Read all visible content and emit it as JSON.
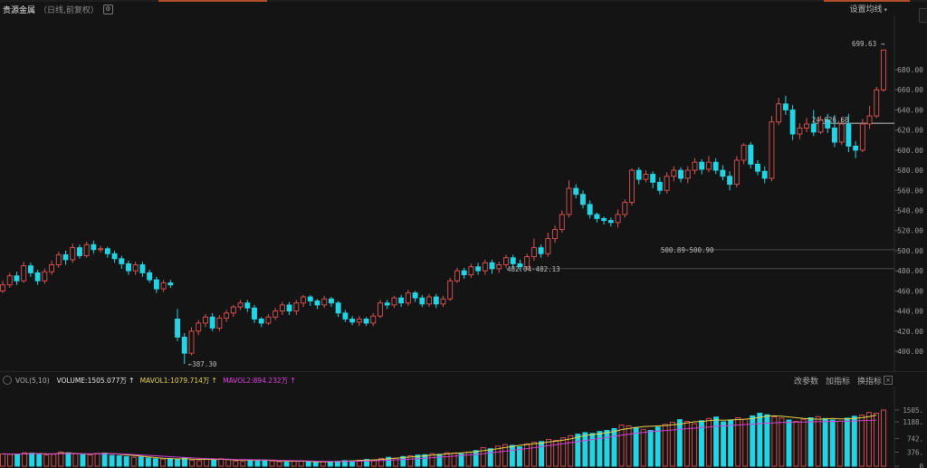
{
  "header": {
    "title": "贵源金属",
    "subtitle": "（日线,前复权）",
    "ma_settings": "设置均线"
  },
  "volume_header": {
    "indicator": "VOL(5,10)",
    "volume_label": "VOLUME:",
    "volume_value": "1505.077万",
    "mavol1_label": "MAVOL1:",
    "mavol1_value": "1079.714万",
    "mavol2_label": "MAVOL2:",
    "mavol2_value": "894.232万",
    "tools": [
      "改参数",
      "加指标",
      "换指标"
    ]
  },
  "colors": {
    "up": "#e05454",
    "down": "#22d4e4",
    "ma_yellow": "#e8d44a",
    "ma_magenta": "#d540d5",
    "axis_text": "#9a9a9a"
  },
  "chart_data": [
    {
      "type": "candlestick",
      "title": "贵源金属",
      "ylim": [
        385,
        710
      ],
      "yticks": [
        400,
        420,
        440,
        460,
        480,
        500,
        520,
        540,
        560,
        580,
        600,
        620,
        640,
        660,
        680
      ],
      "annotations": [
        {
          "text": "699.63",
          "value": 699.63
        },
        {
          "text": "387.30",
          "value": 387.3
        },
        {
          "text": "500.89-500.90",
          "value": 500.9
        },
        {
          "text": "482.04-482.13",
          "value": 482.1
        },
        {
          "text": "24-626.68",
          "value": 626.68
        }
      ],
      "candles": [
        [
          460,
          466,
          458,
          470
        ],
        [
          466,
          475,
          463,
          478
        ],
        [
          475,
          470,
          466,
          479
        ],
        [
          470,
          485,
          468,
          489
        ],
        [
          485,
          478,
          474,
          488
        ],
        [
          478,
          470,
          466,
          481
        ],
        [
          470,
          479,
          467,
          482
        ],
        [
          479,
          486,
          476,
          490
        ],
        [
          486,
          496,
          483,
          499
        ],
        [
          496,
          491,
          486,
          500
        ],
        [
          491,
          503,
          488,
          507
        ],
        [
          503,
          495,
          492,
          506
        ],
        [
          495,
          506,
          493,
          509
        ],
        [
          506,
          501,
          497,
          510
        ],
        [
          501,
          502,
          498,
          505
        ],
        [
          502,
          497,
          493,
          504
        ],
        [
          497,
          492,
          488,
          500
        ],
        [
          492,
          487,
          482,
          495
        ],
        [
          487,
          480,
          476,
          490
        ],
        [
          480,
          486,
          476,
          489
        ],
        [
          486,
          478,
          474,
          489
        ],
        [
          478,
          471,
          468,
          481
        ],
        [
          471,
          462,
          458,
          474
        ],
        [
          462,
          468,
          459,
          471
        ],
        [
          468,
          466,
          463,
          471
        ],
        [
          432,
          414,
          410,
          442
        ],
        [
          414,
          398,
          387.3,
          418
        ],
        [
          398,
          420,
          396,
          424
        ],
        [
          420,
          428,
          416,
          431
        ],
        [
          428,
          434,
          424,
          437
        ],
        [
          434,
          423,
          420,
          438
        ],
        [
          423,
          433,
          420,
          436
        ],
        [
          433,
          438,
          429,
          441
        ],
        [
          438,
          444,
          434,
          446
        ],
        [
          444,
          448,
          441,
          451
        ],
        [
          448,
          443,
          439,
          451
        ],
        [
          443,
          432,
          428,
          446
        ],
        [
          432,
          428,
          424,
          434
        ],
        [
          428,
          434,
          426,
          437
        ],
        [
          434,
          440,
          431,
          443
        ],
        [
          440,
          446,
          436,
          449
        ],
        [
          446,
          440,
          436,
          449
        ],
        [
          440,
          448,
          436,
          451
        ],
        [
          448,
          454,
          444,
          456
        ],
        [
          454,
          450,
          445,
          456
        ],
        [
          450,
          446,
          442,
          452
        ],
        [
          446,
          452,
          443,
          455
        ],
        [
          452,
          448,
          444,
          454
        ],
        [
          448,
          438,
          434,
          450
        ],
        [
          438,
          432,
          429,
          441
        ],
        [
          432,
          429,
          426,
          435
        ],
        [
          429,
          432,
          425,
          435
        ],
        [
          432,
          428,
          425,
          434
        ],
        [
          428,
          435,
          425,
          438
        ],
        [
          435,
          448,
          433,
          451
        ],
        [
          448,
          446,
          442,
          451
        ],
        [
          446,
          453,
          443,
          455
        ],
        [
          453,
          448,
          444,
          456
        ],
        [
          448,
          458,
          445,
          461
        ],
        [
          458,
          453,
          449,
          460
        ],
        [
          453,
          447,
          444,
          456
        ],
        [
          447,
          454,
          444,
          457
        ],
        [
          454,
          447,
          443,
          457
        ],
        [
          447,
          452,
          444,
          455
        ],
        [
          452,
          470,
          450,
          473
        ],
        [
          470,
          480,
          468,
          483
        ],
        [
          480,
          476,
          472,
          483
        ],
        [
          476,
          484,
          473,
          487
        ],
        [
          484,
          480,
          476,
          488
        ],
        [
          480,
          488,
          476,
          491
        ],
        [
          488,
          482,
          477,
          491
        ],
        [
          482,
          486,
          478,
          489
        ],
        [
          486,
          493,
          483,
          496
        ],
        [
          493,
          487,
          483,
          496
        ],
        [
          487,
          484,
          480,
          491
        ],
        [
          484,
          494,
          481,
          497
        ],
        [
          494,
          503,
          490,
          512
        ],
        [
          503,
          497,
          493,
          506
        ],
        [
          497,
          512,
          494,
          518
        ],
        [
          512,
          521,
          508,
          525
        ],
        [
          521,
          536,
          518,
          540
        ],
        [
          536,
          562,
          533,
          570
        ],
        [
          562,
          556,
          552,
          566
        ],
        [
          556,
          546,
          542,
          560
        ],
        [
          546,
          536,
          532,
          550
        ],
        [
          536,
          532,
          528,
          538
        ],
        [
          532,
          530,
          526,
          534
        ],
        [
          530,
          528,
          524,
          533
        ],
        [
          528,
          536,
          523,
          541
        ],
        [
          536,
          548,
          533,
          551
        ],
        [
          548,
          580,
          545,
          582
        ],
        [
          580,
          571,
          566,
          583
        ],
        [
          571,
          576,
          568,
          580
        ],
        [
          576,
          568,
          562,
          579
        ],
        [
          568,
          560,
          556,
          573
        ],
        [
          560,
          574,
          557,
          578
        ],
        [
          574,
          580,
          569,
          584
        ],
        [
          580,
          572,
          568,
          583
        ],
        [
          572,
          580,
          567,
          584
        ],
        [
          580,
          588,
          576,
          592
        ],
        [
          588,
          581,
          576,
          591
        ],
        [
          581,
          588,
          578,
          594
        ],
        [
          588,
          580,
          576,
          592
        ],
        [
          580,
          574,
          570,
          585
        ],
        [
          574,
          566,
          560,
          579
        ],
        [
          566,
          590,
          563,
          594
        ],
        [
          590,
          605,
          586,
          607
        ],
        [
          605,
          586,
          582,
          608
        ],
        [
          586,
          579,
          575,
          590
        ],
        [
          579,
          572,
          567,
          584
        ],
        [
          572,
          628,
          569,
          634
        ],
        [
          628,
          646,
          625,
          652
        ],
        [
          646,
          640,
          635,
          654
        ],
        [
          640,
          616,
          610,
          645
        ],
        [
          616,
          622,
          611,
          627
        ],
        [
          622,
          626,
          618,
          632
        ],
        [
          626,
          618,
          614,
          640
        ],
        [
          618,
          630,
          616,
          634
        ],
        [
          630,
          622,
          617,
          636
        ],
        [
          622,
          608,
          603,
          635
        ],
        [
          608,
          626,
          605,
          632
        ],
        [
          626,
          604,
          598,
          636
        ],
        [
          604,
          600,
          592,
          609
        ],
        [
          600,
          626,
          598,
          631
        ],
        [
          626,
          634,
          621,
          644
        ],
        [
          634,
          660,
          632,
          663
        ],
        [
          660,
          699.63,
          658,
          699.63
        ]
      ],
      "volume": {
        "yticks": [
          "1505.",
          "1188.",
          "742.",
          "376.",
          "0"
        ],
        "bars": [
          330,
          320,
          315,
          360,
          350,
          340,
          300,
          320,
          380,
          360,
          330,
          310,
          300,
          340,
          350,
          290,
          280,
          260,
          240,
          250,
          220,
          200,
          190,
          210,
          180,
          230,
          160,
          150,
          180,
          170,
          200,
          180,
          140,
          130,
          150,
          170,
          160,
          140,
          120,
          110,
          130,
          140,
          120,
          100,
          120,
          110,
          130,
          150,
          140,
          160,
          180,
          170,
          210,
          240,
          220,
          260,
          280,
          300,
          310,
          340,
          320,
          360,
          350,
          330,
          380,
          420,
          500,
          470,
          540,
          580,
          560,
          520,
          600,
          640,
          660,
          720,
          690,
          760,
          820,
          860,
          900,
          880,
          930,
          960,
          1010,
          1100,
          1080,
          1040,
          990,
          960,
          1050,
          1120,
          1180,
          1250,
          1200,
          1140,
          1220,
          1280,
          1320,
          1190,
          1240,
          1300,
          1260,
          1350,
          1420,
          1380,
          1320,
          1290,
          1240,
          1200,
          1260,
          1300,
          1330,
          1280,
          1240,
          1210,
          1290,
          1340,
          1370,
          1440,
          1420,
          1505.077
        ],
        "mavol1": [
          330,
          325,
          322,
          331,
          335,
          337,
          330,
          328,
          344,
          350,
          342,
          330,
          325,
          336,
          346,
          336,
          322,
          304,
          288,
          270,
          250,
          230,
          214,
          200,
          194,
          198,
          190,
          184,
          186,
          178,
          184,
          178,
          166,
          162,
          160,
          160,
          164,
          154,
          144,
          136,
          134,
          136,
          130,
          120,
          118,
          118,
          124,
          134,
          142,
          150,
          162,
          168,
          180,
          200,
          214,
          232,
          246,
          260,
          278,
          298,
          312,
          328,
          346,
          356,
          372,
          388,
          416,
          440,
          468,
          500,
          530,
          560,
          580,
          600,
          620,
          650,
          670,
          700,
          730,
          780,
          820,
          850,
          870,
          900,
          930,
          980,
          1010,
          1040,
          1060,
          1070,
          1080,
          1090,
          1110,
          1130,
          1160,
          1190,
          1200,
          1220,
          1240,
          1230,
          1240,
          1250,
          1260,
          1280,
          1310,
          1340,
          1350,
          1340,
          1320,
          1300,
          1280,
          1270,
          1260,
          1270,
          1280,
          1270,
          1270,
          1280,
          1300,
          1330,
          1370,
          1079.714
        ],
        "mavol2": [
          330,
          328,
          326,
          330,
          333,
          334,
          332,
          330,
          336,
          340,
          337,
          333,
          330,
          333,
          337,
          335,
          330,
          322,
          312,
          302,
          290,
          278,
          266,
          254,
          242,
          232,
          222,
          212,
          204,
          196,
          190,
          186,
          180,
          176,
          172,
          168,
          166,
          162,
          156,
          150,
          146,
          144,
          140,
          134,
          130,
          126,
          124,
          126,
          130,
          134,
          140,
          146,
          152,
          160,
          170,
          180,
          190,
          202,
          214,
          228,
          242,
          256,
          270,
          284,
          300,
          316,
          336,
          356,
          378,
          400,
          424,
          448,
          472,
          498,
          524,
          552,
          578,
          604,
          630,
          658,
          688,
          716,
          744,
          772,
          800,
          830,
          858,
          884,
          906,
          924,
          940,
          956,
          972,
          988,
          1004,
          1020,
          1036,
          1052,
          1068,
          1080,
          1092,
          1104,
          1116,
          1128,
          1140,
          1152,
          1162,
          1170,
          1176,
          1180,
          1184,
          1188,
          1192,
          1196,
          1200,
          1204,
          1208,
          1212,
          1218,
          1226,
          1236,
          894.232
        ]
      }
    }
  ]
}
